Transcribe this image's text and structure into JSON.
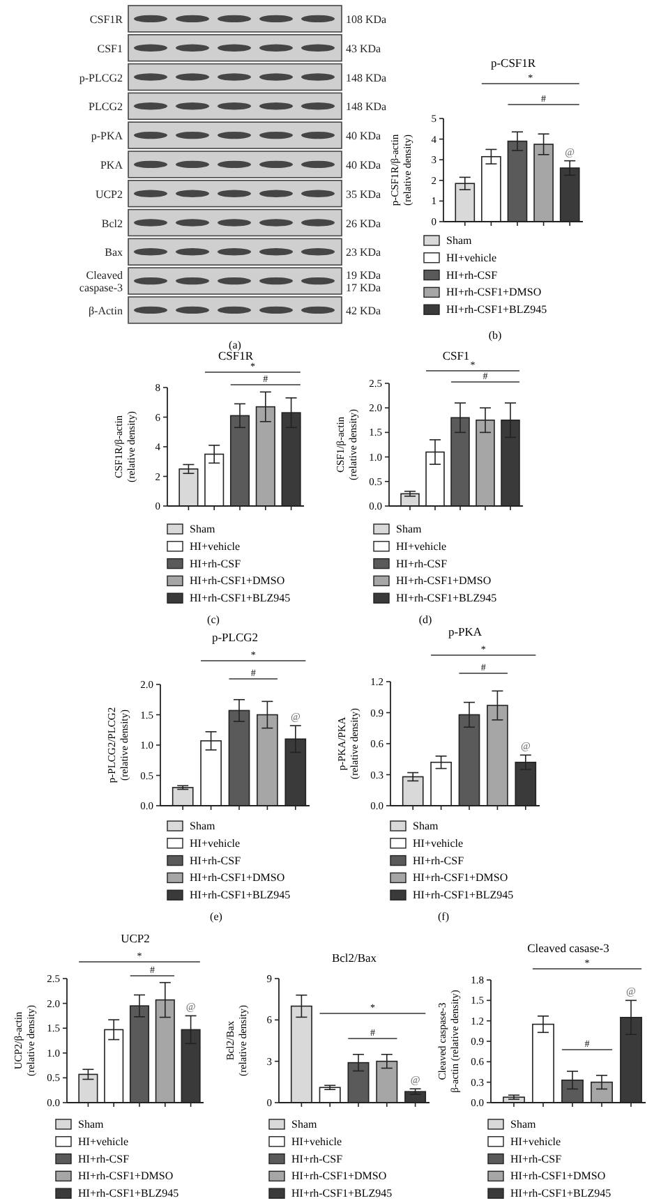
{
  "chart_data": [
    {
      "type": "other",
      "annotations": [
        "CSF1R",
        "108 KDa",
        "CSF1",
        "43 KDa",
        "p-PLCG2",
        "148 KDa",
        "PLCG2",
        "148 KDa",
        "p-PKA",
        "40 KDa",
        "PKA",
        "40 KDa",
        "UCP2",
        "35 KDa",
        "Bcl2",
        "26 KDa",
        "Bax",
        "23 KDa",
        "Cleaved\ncaspase-3",
        "19 KDa\n17 KDa",
        "β-Actin",
        "42 KDa",
        "(a)"
      ]
    },
    {
      "type": "bar",
      "stacked": true,
      "title": "p-CSF1R",
      "ylabel": "p-CSF1R/β-actin\n(relative density)",
      "categories": [
        null,
        null,
        null,
        null,
        null
      ],
      "series": [
        {
          "name": "Sham",
          "color": "#d9d9d9",
          "values": [
            1.85,
            null,
            null,
            null,
            null
          ],
          "errors": [
            0.3,
            null,
            null,
            null,
            null
          ]
        },
        {
          "name": "HI+vehicle",
          "color": "#ffffff",
          "values": [
            null,
            3.15,
            null,
            null,
            null
          ],
          "errors": [
            null,
            0.35,
            null,
            null,
            null
          ]
        },
        {
          "name": "HI+rh-CSF",
          "color": "#5a5a5a",
          "values": [
            null,
            null,
            3.9,
            null,
            null
          ],
          "errors": [
            null,
            null,
            0.45,
            null,
            null
          ]
        },
        {
          "name": "HI+rh-CSF1+DMSO",
          "color": "#a6a6a6",
          "values": [
            null,
            null,
            null,
            3.75,
            null
          ],
          "errors": [
            null,
            null,
            null,
            0.5,
            null
          ]
        },
        {
          "name": "HI+rh-CSF1+BLZ945",
          "color": "#3a3a3a",
          "values": [
            null,
            null,
            null,
            null,
            2.6
          ],
          "errors": [
            null,
            null,
            null,
            null,
            0.35
          ]
        }
      ],
      "ylim": [
        0,
        5
      ],
      "yticks": [
        0,
        1,
        2,
        3,
        4,
        5
      ],
      "tick_labels": "y",
      "legend": "bottom",
      "annotations": [
        "*",
        "#",
        "@",
        "(b)"
      ]
    },
    {
      "type": "bar",
      "stacked": true,
      "title": "CSF1R",
      "ylabel": "CSF1R/β-actin\n(relative density)",
      "categories": [
        null,
        null,
        null,
        null,
        null
      ],
      "series": [
        {
          "name": "Sham",
          "color": "#d9d9d9",
          "values": [
            2.5,
            null,
            null,
            null,
            null
          ],
          "errors": [
            0.3,
            null,
            null,
            null,
            null
          ]
        },
        {
          "name": "HI+vehicle",
          "color": "#ffffff",
          "values": [
            null,
            3.5,
            null,
            null,
            null
          ],
          "errors": [
            null,
            0.6,
            null,
            null,
            null
          ]
        },
        {
          "name": "HI+rh-CSF",
          "color": "#5a5a5a",
          "values": [
            null,
            null,
            6.1,
            null,
            null
          ],
          "errors": [
            null,
            null,
            0.8,
            null,
            null
          ]
        },
        {
          "name": "HI+rh-CSF1+DMSO",
          "color": "#a6a6a6",
          "values": [
            null,
            null,
            null,
            6.7,
            null
          ],
          "errors": [
            null,
            null,
            null,
            1.0,
            null
          ]
        },
        {
          "name": "HI+rh-CSF1+BLZ945",
          "color": "#3a3a3a",
          "values": [
            null,
            null,
            null,
            null,
            6.3
          ],
          "errors": [
            null,
            null,
            null,
            null,
            1.0
          ]
        }
      ],
      "ylim": [
        0,
        8
      ],
      "yticks": [
        0,
        2,
        4,
        6,
        8
      ],
      "tick_labels": "y",
      "legend": "bottom",
      "annotations": [
        "*",
        "#",
        "(c)"
      ]
    },
    {
      "type": "bar",
      "stacked": true,
      "title": "CSF1",
      "ylabel": "CSF1/β-actin\n(relative density)",
      "categories": [
        null,
        null,
        null,
        null,
        null
      ],
      "series": [
        {
          "name": "Sham",
          "color": "#d9d9d9",
          "values": [
            0.25,
            null,
            null,
            null,
            null
          ],
          "errors": [
            0.05,
            null,
            null,
            null,
            null
          ]
        },
        {
          "name": "HI+vehicle",
          "color": "#ffffff",
          "values": [
            null,
            1.1,
            null,
            null,
            null
          ],
          "errors": [
            null,
            0.25,
            null,
            null,
            null
          ]
        },
        {
          "name": "HI+rh-CSF",
          "color": "#5a5a5a",
          "values": [
            null,
            null,
            1.8,
            null,
            null
          ],
          "errors": [
            null,
            null,
            0.3,
            null,
            null
          ]
        },
        {
          "name": "HI+rh-CSF1+DMSO",
          "color": "#a6a6a6",
          "values": [
            null,
            null,
            null,
            1.75,
            null
          ],
          "errors": [
            null,
            null,
            null,
            0.25,
            null
          ]
        },
        {
          "name": "HI+rh-CSF1+BLZ945",
          "color": "#3a3a3a",
          "values": [
            null,
            null,
            null,
            null,
            1.75
          ],
          "errors": [
            null,
            null,
            null,
            null,
            0.35
          ]
        }
      ],
      "ylim": [
        0,
        2.5
      ],
      "yticks": [
        {
          "value": 0,
          "label": "0.0"
        },
        0.5,
        {
          "value": 1,
          "label": "1.0"
        },
        1.5,
        {
          "value": 2,
          "label": "2.0"
        },
        2.5
      ],
      "tick_labels": "y",
      "legend": "bottom",
      "annotations": [
        "*",
        "#",
        "(d)"
      ]
    },
    {
      "type": "bar",
      "stacked": true,
      "title": "p-PLCG2",
      "ylabel": "p-PLCG2/PLCG2\n(relative density)",
      "categories": [
        null,
        null,
        null,
        null,
        null
      ],
      "series": [
        {
          "name": "Sham",
          "color": "#d9d9d9",
          "values": [
            0.3,
            null,
            null,
            null,
            null
          ],
          "errors": [
            0.03,
            null,
            null,
            null,
            null
          ]
        },
        {
          "name": "HI+vehicle",
          "color": "#ffffff",
          "values": [
            null,
            1.07,
            null,
            null,
            null
          ],
          "errors": [
            null,
            0.15,
            null,
            null,
            null
          ]
        },
        {
          "name": "HI+rh-CSF",
          "color": "#5a5a5a",
          "values": [
            null,
            null,
            1.57,
            null,
            null
          ],
          "errors": [
            null,
            null,
            0.18,
            null,
            null
          ]
        },
        {
          "name": "HI+rh-CSF1+DMSO",
          "color": "#a6a6a6",
          "values": [
            null,
            null,
            null,
            1.5,
            null
          ],
          "errors": [
            null,
            null,
            null,
            0.22,
            null
          ]
        },
        {
          "name": "HI+rh-CSF1+BLZ945",
          "color": "#3a3a3a",
          "values": [
            null,
            null,
            null,
            null,
            1.1
          ],
          "errors": [
            null,
            null,
            null,
            null,
            0.22
          ]
        }
      ],
      "ylim": [
        0,
        2
      ],
      "yticks": [
        {
          "value": 0,
          "label": "0.0"
        },
        0.5,
        {
          "value": 1,
          "label": "1.0"
        },
        1.5,
        {
          "value": 2,
          "label": "2.0"
        }
      ],
      "tick_labels": "y",
      "legend": "bottom",
      "annotations": [
        "*",
        "#",
        "@",
        "(e)"
      ]
    },
    {
      "type": "bar",
      "stacked": true,
      "title": "p-PKA",
      "ylabel": "p-PKA/PKA\n(relative density)",
      "categories": [
        null,
        null,
        null,
        null,
        null
      ],
      "series": [
        {
          "name": "Sham",
          "color": "#d9d9d9",
          "values": [
            0.28,
            null,
            null,
            null,
            null
          ],
          "errors": [
            0.04,
            null,
            null,
            null,
            null
          ]
        },
        {
          "name": "HI+vehicle",
          "color": "#ffffff",
          "values": [
            null,
            0.42,
            null,
            null,
            null
          ],
          "errors": [
            null,
            0.06,
            null,
            null,
            null
          ]
        },
        {
          "name": "HI+rh-CSF",
          "color": "#5a5a5a",
          "values": [
            null,
            null,
            0.88,
            null,
            null
          ],
          "errors": [
            null,
            null,
            0.12,
            null,
            null
          ]
        },
        {
          "name": "HI+rh-CSF1+DMSO",
          "color": "#a6a6a6",
          "values": [
            null,
            null,
            null,
            0.97,
            null
          ],
          "errors": [
            null,
            null,
            null,
            0.14,
            null
          ]
        },
        {
          "name": "HI+rh-CSF1+BLZ945",
          "color": "#3a3a3a",
          "values": [
            null,
            null,
            null,
            null,
            0.42
          ],
          "errors": [
            null,
            null,
            null,
            null,
            0.07
          ]
        }
      ],
      "ylim": [
        0,
        1.2
      ],
      "yticks": [
        {
          "value": 0,
          "label": "0.0"
        },
        0.3,
        0.6,
        0.9,
        1.2
      ],
      "tick_labels": "y",
      "legend": "bottom",
      "annotations": [
        "*",
        "#",
        "@",
        "(f)"
      ]
    },
    {
      "type": "bar",
      "stacked": true,
      "title": "UCP2",
      "ylabel": "UCP2/β-actin\n(relative density)",
      "categories": [
        null,
        null,
        null,
        null,
        null
      ],
      "series": [
        {
          "name": "Sham",
          "color": "#d9d9d9",
          "values": [
            0.57,
            null,
            null,
            null,
            null
          ],
          "errors": [
            0.1,
            null,
            null,
            null,
            null
          ]
        },
        {
          "name": "HI+vehicle",
          "color": "#ffffff",
          "values": [
            null,
            1.47,
            null,
            null,
            null
          ],
          "errors": [
            null,
            0.2,
            null,
            null,
            null
          ]
        },
        {
          "name": "HI+rh-CSF",
          "color": "#5a5a5a",
          "values": [
            null,
            null,
            1.95,
            null,
            null
          ],
          "errors": [
            null,
            null,
            0.22,
            null,
            null
          ]
        },
        {
          "name": "HI+rh-CSF1+DMSO",
          "color": "#a6a6a6",
          "values": [
            null,
            null,
            null,
            2.07,
            null
          ],
          "errors": [
            null,
            null,
            null,
            0.35,
            null
          ]
        },
        {
          "name": "HI+rh-CSF1+BLZ945",
          "color": "#3a3a3a",
          "values": [
            null,
            null,
            null,
            null,
            1.47
          ],
          "errors": [
            null,
            null,
            null,
            null,
            0.28
          ]
        }
      ],
      "ylim": [
        0,
        2.5
      ],
      "yticks": [
        {
          "value": 0,
          "label": "0.0"
        },
        0.5,
        {
          "value": 1,
          "label": "1.0"
        },
        1.5,
        {
          "value": 2,
          "label": "2.0"
        },
        2.5
      ],
      "tick_labels": "y",
      "legend": "bottom",
      "annotations": [
        "*",
        "#",
        "@"
      ]
    },
    {
      "type": "bar",
      "stacked": true,
      "title": "Bcl2/Bax",
      "ylabel": "Bcl2/Bax\n(relative density)",
      "categories": [
        null,
        null,
        null,
        null,
        null
      ],
      "series": [
        {
          "name": "Sham",
          "color": "#d9d9d9",
          "values": [
            7.0,
            null,
            null,
            null,
            null
          ],
          "errors": [
            0.8,
            null,
            null,
            null,
            null
          ]
        },
        {
          "name": "HI+vehicle",
          "color": "#ffffff",
          "values": [
            null,
            1.1,
            null,
            null,
            null
          ],
          "errors": [
            null,
            0.15,
            null,
            null,
            null
          ]
        },
        {
          "name": "HI+rh-CSF",
          "color": "#5a5a5a",
          "values": [
            null,
            null,
            2.9,
            null,
            null
          ],
          "errors": [
            null,
            null,
            0.6,
            null,
            null
          ]
        },
        {
          "name": "HI+rh-CSF1+DMSO",
          "color": "#a6a6a6",
          "values": [
            null,
            null,
            null,
            3.0,
            null
          ],
          "errors": [
            null,
            null,
            null,
            0.5,
            null
          ]
        },
        {
          "name": "HI+rh-CSF1+BLZ945",
          "color": "#3a3a3a",
          "values": [
            null,
            null,
            null,
            null,
            0.8
          ],
          "errors": [
            null,
            null,
            null,
            null,
            0.2
          ]
        }
      ],
      "ylim": [
        0,
        9
      ],
      "yticks": [
        0,
        3,
        6,
        9
      ],
      "tick_labels": "y",
      "legend": "bottom",
      "annotations": [
        "*",
        "#",
        "@"
      ]
    },
    {
      "type": "bar",
      "stacked": true,
      "title": "Cleaved casase-3",
      "ylabel": "Cleaved caspase-3\nβ-actin (relative density)",
      "categories": [
        null,
        null,
        null,
        null,
        null
      ],
      "series": [
        {
          "name": "Sham",
          "color": "#d9d9d9",
          "values": [
            0.08,
            null,
            null,
            null,
            null
          ],
          "errors": [
            0.03,
            null,
            null,
            null,
            null
          ]
        },
        {
          "name": "HI+vehicle",
          "color": "#ffffff",
          "values": [
            null,
            1.15,
            null,
            null,
            null
          ],
          "errors": [
            null,
            0.12,
            null,
            null,
            null
          ]
        },
        {
          "name": "HI+rh-CSF",
          "color": "#5a5a5a",
          "values": [
            null,
            null,
            0.33,
            null,
            null
          ],
          "errors": [
            null,
            null,
            0.13,
            null,
            null
          ]
        },
        {
          "name": "HI+rh-CSF1+DMSO",
          "color": "#a6a6a6",
          "values": [
            null,
            null,
            null,
            0.3,
            null
          ],
          "errors": [
            null,
            null,
            null,
            0.1,
            null
          ]
        },
        {
          "name": "HI+rh-CSF1+BLZ945",
          "color": "#3a3a3a",
          "values": [
            null,
            null,
            null,
            null,
            1.25
          ],
          "errors": [
            null,
            null,
            null,
            null,
            0.25
          ]
        }
      ],
      "ylim": [
        0,
        1.8
      ],
      "yticks": [
        {
          "value": 0,
          "label": "0.0"
        },
        0.3,
        0.6,
        0.9,
        1.2,
        1.5,
        1.8
      ],
      "tick_labels": "y",
      "legend": "bottom",
      "annotations": [
        "*",
        "#",
        "@"
      ]
    }
  ]
}
